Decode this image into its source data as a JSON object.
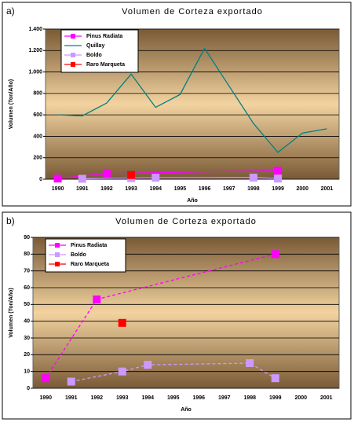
{
  "chart_data": [
    {
      "type": "line",
      "panel_label": "a)",
      "title": "Volumen de Corteza exportado",
      "y_label": "Volumen (Ton/Año)",
      "x_label": "Año",
      "categories": [
        "1990",
        "1991",
        "1992",
        "1993",
        "1994",
        "1995",
        "1996",
        "1997",
        "1998",
        "1999",
        "2000",
        "2001"
      ],
      "ylim": [
        0,
        1400
      ],
      "yticks": [
        0,
        200,
        400,
        600,
        800,
        {
          "value": 1000,
          "label": "1.000"
        },
        {
          "value": 1200,
          "label": "1.200"
        },
        {
          "value": 1400,
          "label": "1.400"
        }
      ],
      "grid": true,
      "line_style": "solid",
      "series": [
        {
          "name": "Pinus Radiata",
          "color": "#ff00ff",
          "marker": "square",
          "x": [
            "1990",
            "1992",
            "1999"
          ],
          "values": [
            6,
            53,
            80
          ]
        },
        {
          "name": "Quillay",
          "color": "#008080",
          "marker": "none",
          "x": [
            "1990",
            "1991",
            "1992",
            "1993",
            "1994",
            "1995",
            "1996",
            "1997",
            "1998",
            "1999",
            "2000",
            "2001"
          ],
          "values": [
            600,
            590,
            710,
            980,
            670,
            790,
            1220,
            870,
            520,
            250,
            430,
            470
          ]
        },
        {
          "name": "Boldo",
          "color": "#cc99ff",
          "marker": "square",
          "x": [
            "1991",
            "1993",
            "1994",
            "1998",
            "1999"
          ],
          "values": [
            4,
            10,
            14,
            15,
            6
          ]
        },
        {
          "name": "Raro Marqueta",
          "color": "#ff0000",
          "marker": "square",
          "x": [
            "1993"
          ],
          "values": [
            39
          ]
        }
      ]
    },
    {
      "type": "line",
      "panel_label": "b)",
      "title": "Volumen de Corteza exportado",
      "y_label": "Volumen (Ton/Año)",
      "x_label": "Año",
      "categories": [
        "1990",
        "1991",
        "1992",
        "1993",
        "1994",
        "1995",
        "1996",
        "1997",
        "1998",
        "1999",
        "2000",
        "2001"
      ],
      "ylim": [
        0,
        90
      ],
      "yticks": [
        0,
        10,
        20,
        30,
        40,
        50,
        60,
        70,
        80,
        90
      ],
      "grid": true,
      "line_style": "dashed",
      "series": [
        {
          "name": "Pinus Radiata",
          "color": "#ff00ff",
          "marker": "square",
          "x": [
            "1990",
            "1992",
            "1999"
          ],
          "values": [
            6,
            53,
            80
          ]
        },
        {
          "name": "Boldo",
          "color": "#cc99ff",
          "marker": "square",
          "x": [
            "1991",
            "1993",
            "1994",
            "1998",
            "1999"
          ],
          "values": [
            4,
            10,
            14,
            15,
            6
          ]
        },
        {
          "name": "Raro Marqueta",
          "color": "#ff0000",
          "marker": "square",
          "x": [
            "1993"
          ],
          "values": [
            39
          ]
        }
      ]
    }
  ]
}
